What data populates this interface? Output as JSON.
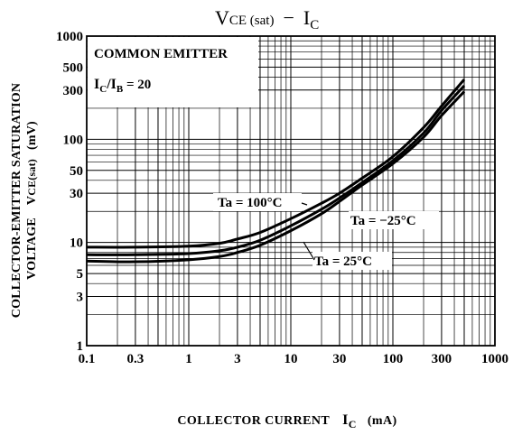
{
  "chart_data": {
    "type": "line",
    "title": {
      "main": "V",
      "sub1": "CE (sat)",
      "dash": "−",
      "main2": "I",
      "sub2": "C"
    },
    "xlabel": {
      "text": "COLLECTOR CURRENT",
      "sym": "I",
      "sub": "C",
      "unit": "(mA)"
    },
    "ylabel": {
      "line1": "COLLECTOR-EMITTER SATURATION",
      "line2_a": "VOLTAGE",
      "line2_sym": "V",
      "line2_sub": "CE(sat)",
      "line2_unit": "(mV)"
    },
    "x_scale": "log",
    "y_scale": "log",
    "xlim": [
      0.1,
      1000
    ],
    "ylim": [
      1,
      1000
    ],
    "x_ticks": [
      {
        "value": 0.1,
        "label": "0.1"
      },
      {
        "value": 0.3,
        "label": "0.3"
      },
      {
        "value": 1,
        "label": "1"
      },
      {
        "value": 3,
        "label": "3"
      },
      {
        "value": 10,
        "label": "10"
      },
      {
        "value": 30,
        "label": "30"
      },
      {
        "value": 100,
        "label": "100"
      },
      {
        "value": 300,
        "label": "300"
      },
      {
        "value": 1000,
        "label": "1000"
      }
    ],
    "y_ticks": [
      {
        "value": 1,
        "label": "1"
      },
      {
        "value": 3,
        "label": "3"
      },
      {
        "value": 5,
        "label": "5"
      },
      {
        "value": 10,
        "label": "10"
      },
      {
        "value": 30,
        "label": "30"
      },
      {
        "value": 50,
        "label": "50"
      },
      {
        "value": 100,
        "label": "100"
      },
      {
        "value": 300,
        "label": "300"
      },
      {
        "value": 500,
        "label": "500"
      },
      {
        "value": 1000,
        "label": "1000"
      }
    ],
    "grid": true,
    "conditions": {
      "line1": "COMMON EMITTER",
      "line2_a": "I",
      "line2_asub": "C",
      "line2_slash": "/I",
      "line2_bsub": "B",
      "line2_val": " = 20"
    },
    "series": [
      {
        "name": "Ta = 100°C",
        "x": [
          0.1,
          0.3,
          1,
          2,
          3,
          5,
          10,
          20,
          30,
          50,
          100,
          200,
          300,
          500
        ],
        "y": [
          9.0,
          9.0,
          9.2,
          9.8,
          10.8,
          12.5,
          17,
          24,
          30,
          42,
          68,
          130,
          210,
          380
        ]
      },
      {
        "name": "Ta = -25°C",
        "x": [
          0.1,
          0.3,
          1,
          2,
          3,
          5,
          10,
          20,
          30,
          50,
          100,
          200,
          300,
          500
        ],
        "y": [
          7.6,
          7.6,
          7.8,
          8.3,
          9.0,
          10.5,
          14.5,
          21,
          27,
          38,
          62,
          115,
          190,
          330
        ]
      },
      {
        "name": "Ta = 25°C",
        "x": [
          0.1,
          0.3,
          1,
          2,
          3,
          5,
          10,
          20,
          30,
          50,
          100,
          200,
          300,
          500
        ],
        "y": [
          6.6,
          6.5,
          6.8,
          7.3,
          8.0,
          9.4,
          13,
          19,
          25,
          36,
          58,
          105,
          170,
          290
        ]
      }
    ],
    "annotations": [
      {
        "text": "Ta = 100°C"
      },
      {
        "text": "Ta = −25°C"
      },
      {
        "text": "Ta = 25°C"
      }
    ]
  }
}
